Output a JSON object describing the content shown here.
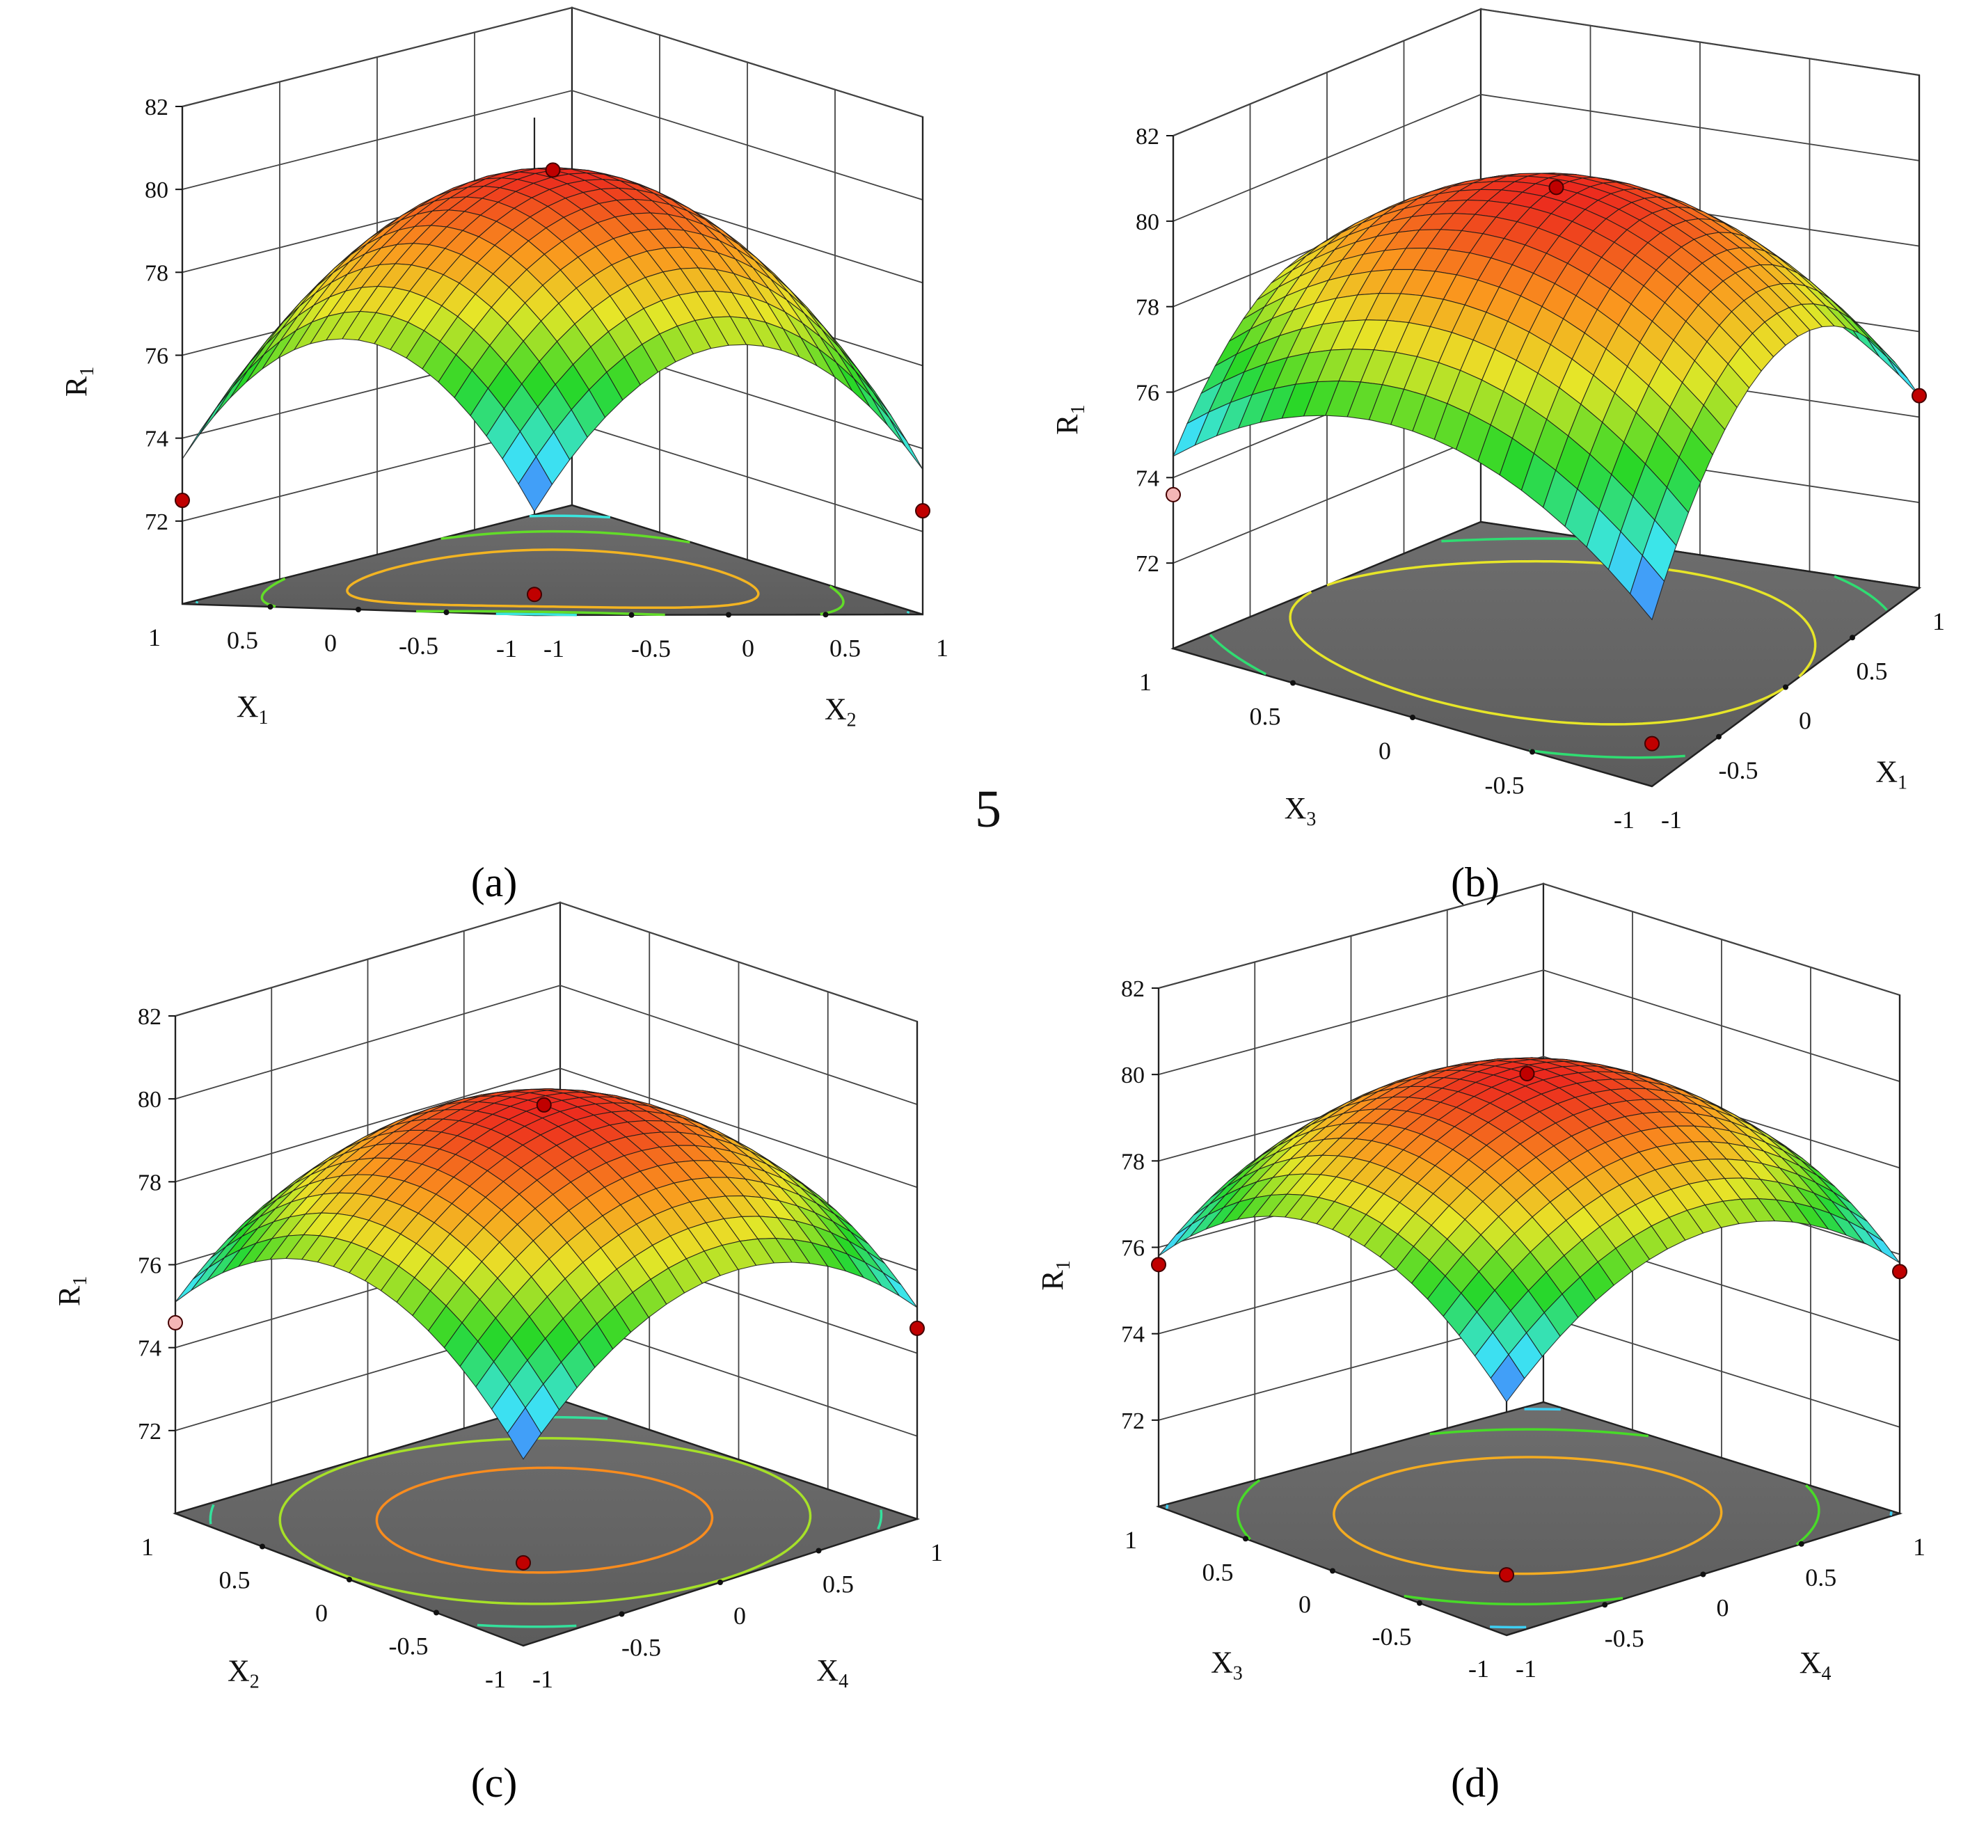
{
  "figure": {
    "stray_text": "5",
    "labels": [
      "(a)",
      "(b)",
      "(c)",
      "(d)"
    ]
  },
  "chart_data": [
    {
      "type": "surface3d",
      "panel": "a",
      "zlabel": "R",
      "zlabel_sub": "1",
      "zticks": [
        "82",
        "80",
        "78",
        "76",
        "74",
        "72"
      ],
      "zlim": [
        70,
        82
      ],
      "x": {
        "label": "X",
        "sub": "1",
        "ticks": [
          "1",
          "0.5",
          "0",
          "-0.5",
          "-1"
        ],
        "range": [
          -1,
          1
        ]
      },
      "y": {
        "label": "X",
        "sub": "2",
        "ticks": [
          "1",
          "0.5",
          "0",
          "-0.5",
          "-1"
        ],
        "range": [
          -1,
          1
        ]
      },
      "model": {
        "z0": 80.0,
        "ax": -3.5,
        "ay": -3.5,
        "axy": -0.5
      },
      "points": [
        {
          "x": 0,
          "y": 0,
          "z": 80.0,
          "color": "#c00000"
        },
        {
          "x": 1,
          "y": -1,
          "z": 72.5,
          "color": "#c00000"
        },
        {
          "x": -1,
          "y": 1,
          "z": 72.5,
          "color": "#c00000"
        },
        {
          "x": -1,
          "y": -1,
          "z": 70.5,
          "color": "#c00000"
        }
      ],
      "contours": [
        72,
        74,
        76,
        78
      ],
      "grid": true
    },
    {
      "type": "surface3d",
      "panel": "b",
      "zlabel": "R",
      "zlabel_sub": "1",
      "zticks": [
        "82",
        "80",
        "78",
        "76",
        "74",
        "72"
      ],
      "zlim": [
        70,
        82
      ],
      "x": {
        "label": "X",
        "sub": "3",
        "ticks": [
          "1",
          "0.5",
          "0",
          "-0.5",
          "-1"
        ],
        "range": [
          -1,
          1
        ]
      },
      "y": {
        "label": "X",
        "sub": "1",
        "ticks": [
          "1",
          "0.5",
          "0",
          "-0.5",
          "-1"
        ],
        "range": [
          -1,
          1
        ]
      },
      "model": {
        "z0": 80.5,
        "ax": -2.5,
        "ay": -3.8,
        "axy": -0.3
      },
      "points": [
        {
          "x": 0,
          "y": 0,
          "z": 80.5,
          "color": "#c00000"
        },
        {
          "x": 1,
          "y": -1,
          "z": 73.6,
          "color": "#f4b6b6"
        },
        {
          "x": -1,
          "y": 1,
          "z": 74.5,
          "color": "#c00000"
        },
        {
          "x": -1,
          "y": -1,
          "z": 71.0,
          "color": "#c00000"
        }
      ],
      "contours": [
        72,
        74,
        76,
        78
      ],
      "grid": true
    },
    {
      "type": "surface3d",
      "panel": "c",
      "zlabel": "R",
      "zlabel_sub": "1",
      "zticks": [
        "82",
        "80",
        "78",
        "76",
        "74",
        "72"
      ],
      "zlim": [
        70,
        82
      ],
      "x": {
        "label": "X",
        "sub": "2",
        "ticks": [
          "1",
          "0.5",
          "0",
          "-0.5",
          "-1"
        ],
        "range": [
          -1,
          1
        ]
      },
      "y": {
        "label": "X",
        "sub": "4",
        "ticks": [
          "1",
          "0.5",
          "0",
          "-0.5",
          "-1"
        ],
        "range": [
          -1,
          1
        ]
      },
      "model": {
        "z0": 80.0,
        "ax": -2.6,
        "ay": -2.6,
        "axy": -0.3
      },
      "points": [
        {
          "x": 0,
          "y": 0,
          "z": 80.0,
          "color": "#c00000"
        },
        {
          "x": 1,
          "y": -1,
          "z": 74.6,
          "color": "#f4b6b6"
        },
        {
          "x": -1,
          "y": 1,
          "z": 74.6,
          "color": "#c00000"
        },
        {
          "x": -1,
          "y": -1,
          "z": 72.0,
          "color": "#c00000"
        }
      ],
      "contours": [
        74,
        76,
        77.5,
        79
      ],
      "grid": true
    },
    {
      "type": "surface3d",
      "panel": "d",
      "zlabel": "R",
      "zlabel_sub": "1",
      "zticks": [
        "82",
        "80",
        "78",
        "76",
        "74",
        "72"
      ],
      "zlim": [
        70,
        82
      ],
      "x": {
        "label": "X",
        "sub": "3",
        "ticks": [
          "1",
          "0.5",
          "0",
          "-0.5",
          "-1"
        ],
        "range": [
          -1,
          1
        ]
      },
      "y": {
        "label": "X",
        "sub": "4",
        "ticks": [
          "1",
          "0.5",
          "0",
          "-0.5",
          "-1"
        ],
        "range": [
          -1,
          1
        ]
      },
      "model": {
        "z0": 80.2,
        "ax": -2.3,
        "ay": -2.3,
        "axy": -0.2
      },
      "points": [
        {
          "x": 0,
          "y": 0,
          "z": 80.2,
          "color": "#c00000"
        },
        {
          "x": 1,
          "y": -1,
          "z": 75.6,
          "color": "#c00000"
        },
        {
          "x": -1,
          "y": 1,
          "z": 75.6,
          "color": "#c00000"
        },
        {
          "x": -1,
          "y": -1,
          "z": 71.4,
          "color": "#c00000"
        }
      ],
      "contours": [
        74,
        76,
        77.5,
        79
      ],
      "grid": true
    }
  ]
}
